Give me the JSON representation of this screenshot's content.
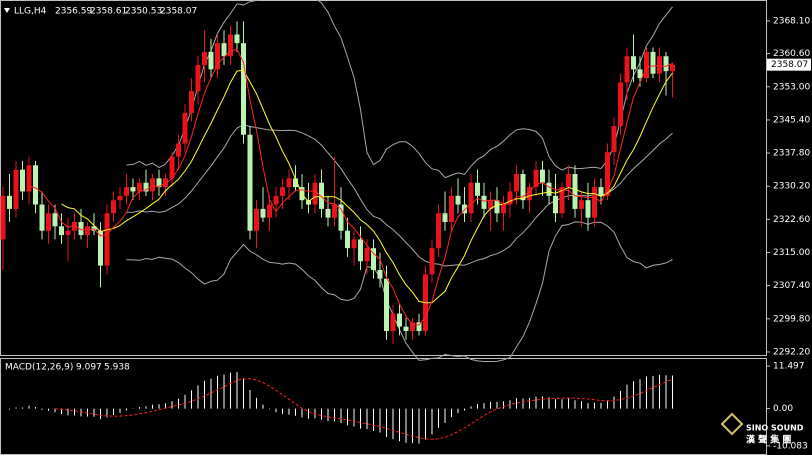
{
  "chart_data": {
    "type": "candlestick",
    "title": "LLG,H4",
    "up_color": "#e8141a",
    "down_color": "#b9f5b0",
    "ma_colors": [
      "#ff2424",
      "#ffff30"
    ],
    "band_color": "#a8a8a8",
    "ylim": [
      2291.5,
      2372.9
    ],
    "yticks": [
      {
        "value": 2368.1,
        "label": "2368.10"
      },
      {
        "value": 2360.6,
        "label": "2360.60"
      },
      {
        "value": 2353,
        "label": "2353.00"
      },
      {
        "value": 2345.4,
        "label": "2345.40"
      },
      {
        "value": 2337.8,
        "label": "2337.80"
      },
      {
        "value": 2330.2,
        "label": "2330.20"
      },
      {
        "value": 2322.6,
        "label": "2322.60"
      },
      {
        "value": 2315,
        "label": "2315.00"
      },
      {
        "value": 2307.4,
        "label": "2307.40"
      },
      {
        "value": 2299.8,
        "label": "2299.80"
      },
      {
        "value": 2292.2,
        "label": "2292.20"
      }
    ],
    "ohlc": [
      [
        2318,
        2330,
        2311,
        2328
      ],
      [
        2328,
        2333,
        2322,
        2325
      ],
      [
        2325,
        2336,
        2323,
        2334
      ],
      [
        2334,
        2336,
        2327,
        2329
      ],
      [
        2329,
        2337,
        2326,
        2335
      ],
      [
        2335,
        2336,
        2324,
        2326
      ],
      [
        2326,
        2329,
        2318,
        2320
      ],
      [
        2320,
        2326,
        2317,
        2324
      ],
      [
        2324,
        2326,
        2318,
        2321
      ],
      [
        2321,
        2324,
        2317,
        2319
      ],
      [
        2319,
        2323,
        2313,
        2320
      ],
      [
        2320,
        2324,
        2318,
        2322
      ],
      [
        2322,
        2325,
        2318,
        2319
      ],
      [
        2319,
        2322,
        2316,
        2321
      ],
      [
        2321,
        2324,
        2319,
        2320
      ],
      [
        2320,
        2322,
        2307,
        2312
      ],
      [
        2312,
        2326,
        2310,
        2324
      ],
      [
        2324,
        2329,
        2322,
        2327
      ],
      [
        2327,
        2330,
        2325,
        2328
      ],
      [
        2328,
        2333,
        2326,
        2330
      ],
      [
        2330,
        2332,
        2327,
        2329
      ],
      [
        2329,
        2332,
        2327,
        2331
      ],
      [
        2331,
        2334,
        2328,
        2329
      ],
      [
        2329,
        2333,
        2327,
        2332
      ],
      [
        2332,
        2334,
        2328,
        2330
      ],
      [
        2330,
        2333,
        2328,
        2332
      ],
      [
        2332,
        2338,
        2330,
        2337
      ],
      [
        2337,
        2342,
        2334,
        2340
      ],
      [
        2340,
        2349,
        2338,
        2347
      ],
      [
        2347,
        2355,
        2345,
        2352
      ],
      [
        2352,
        2360,
        2349,
        2358
      ],
      [
        2358,
        2366,
        2354,
        2361
      ],
      [
        2361,
        2364,
        2355,
        2357
      ],
      [
        2357,
        2365,
        2355,
        2363
      ],
      [
        2363,
        2366,
        2358,
        2360
      ],
      [
        2360,
        2367,
        2358,
        2365
      ],
      [
        2365,
        2368,
        2361,
        2363
      ],
      [
        2363,
        2368,
        2340,
        2342
      ],
      [
        2342,
        2344,
        2318,
        2320
      ],
      [
        2320,
        2327,
        2316,
        2325
      ],
      [
        2325,
        2330,
        2322,
        2323
      ],
      [
        2323,
        2328,
        2320,
        2326
      ],
      [
        2326,
        2330,
        2323,
        2328
      ],
      [
        2328,
        2332,
        2325,
        2330
      ],
      [
        2330,
        2334,
        2327,
        2332
      ],
      [
        2332,
        2335,
        2329,
        2330
      ],
      [
        2330,
        2333,
        2325,
        2327
      ],
      [
        2327,
        2331,
        2324,
        2326
      ],
      [
        2326,
        2333,
        2324,
        2331
      ],
      [
        2331,
        2334,
        2323,
        2325
      ],
      [
        2325,
        2328,
        2321,
        2323
      ],
      [
        2323,
        2337,
        2321,
        2326
      ],
      [
        2326,
        2330,
        2318,
        2320
      ],
      [
        2320,
        2323,
        2314,
        2316
      ],
      [
        2316,
        2320,
        2312,
        2318
      ],
      [
        2318,
        2321,
        2311,
        2313
      ],
      [
        2313,
        2318,
        2310,
        2316
      ],
      [
        2316,
        2318,
        2309,
        2311
      ],
      [
        2311,
        2315,
        2307,
        2309
      ],
      [
        2309,
        2312,
        2295,
        2297
      ],
      [
        2297,
        2303,
        2294,
        2301
      ],
      [
        2301,
        2303,
        2296,
        2298
      ],
      [
        2298,
        2300,
        2295,
        2297
      ],
      [
        2297,
        2300,
        2295,
        2299
      ],
      [
        2299,
        2301,
        2296,
        2297
      ],
      [
        2297,
        2312,
        2296,
        2310
      ],
      [
        2310,
        2318,
        2308,
        2316
      ],
      [
        2316,
        2326,
        2314,
        2324
      ],
      [
        2324,
        2329,
        2320,
        2322
      ],
      [
        2322,
        2330,
        2320,
        2328
      ],
      [
        2328,
        2332,
        2324,
        2326
      ],
      [
        2326,
        2330,
        2322,
        2324
      ],
      [
        2324,
        2333,
        2322,
        2331
      ],
      [
        2331,
        2334,
        2326,
        2328
      ],
      [
        2328,
        2331,
        2323,
        2325
      ],
      [
        2325,
        2329,
        2320,
        2327
      ],
      [
        2327,
        2330,
        2322,
        2324
      ],
      [
        2324,
        2328,
        2320,
        2326
      ],
      [
        2326,
        2331,
        2323,
        2329
      ],
      [
        2329,
        2335,
        2326,
        2333
      ],
      [
        2333,
        2334,
        2325,
        2327
      ],
      [
        2327,
        2331,
        2324,
        2330
      ],
      [
        2330,
        2336,
        2328,
        2334
      ],
      [
        2334,
        2336,
        2328,
        2331
      ],
      [
        2331,
        2334,
        2326,
        2328
      ],
      [
        2328,
        2333,
        2322,
        2324
      ],
      [
        2324,
        2331,
        2323,
        2330
      ],
      [
        2330,
        2335,
        2327,
        2333
      ],
      [
        2333,
        2335,
        2323,
        2325
      ],
      [
        2325,
        2329,
        2321,
        2327
      ],
      [
        2327,
        2331,
        2320,
        2323
      ],
      [
        2323,
        2332,
        2321,
        2330
      ],
      [
        2330,
        2332,
        2326,
        2328
      ],
      [
        2328,
        2340,
        2327,
        2338
      ],
      [
        2338,
        2346,
        2335,
        2344
      ],
      [
        2344,
        2356,
        2342,
        2354
      ],
      [
        2354,
        2362,
        2350,
        2360
      ],
      [
        2360,
        2365,
        2354,
        2357
      ],
      [
        2357,
        2360,
        2353,
        2355
      ],
      [
        2355,
        2362,
        2354,
        2361
      ],
      [
        2361,
        2362,
        2355,
        2356
      ],
      [
        2356,
        2362,
        2354,
        2360
      ],
      [
        2360,
        2361,
        2351,
        2356.59
      ],
      [
        2356.59,
        2358.61,
        2350.53,
        2358.07
      ]
    ],
    "macd": {
      "title": "MACD(12,26,9)",
      "main": 9.097,
      "signal": 5.938,
      "hist_color": "#ffffff",
      "signal_color": "#ff2020",
      "ylim": [
        -12.55,
        13.69
      ],
      "yticks": [
        11.497,
        {
          "value": 0,
          "label": "0.00"
        },
        -10.083
      ]
    },
    "logo": {
      "name": "SINO SOUND",
      "name_cn": "漢 聲 集 團"
    }
  }
}
